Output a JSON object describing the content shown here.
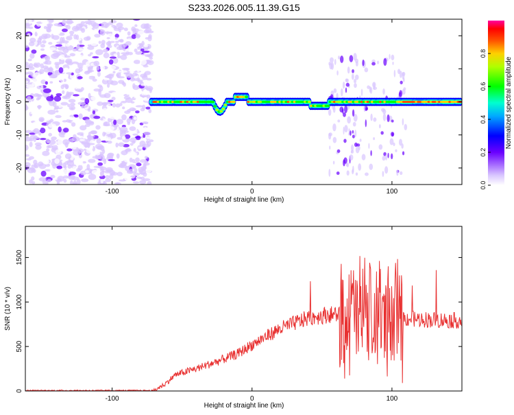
{
  "title": "S233.2026.005.11.39.G15",
  "chart_data": [
    {
      "type": "heatmap",
      "xlabel": "Height of straight line (km)",
      "ylabel": "Frequency (Hz)",
      "xlim": [
        -162,
        150
      ],
      "ylim": [
        -25,
        25
      ],
      "xticks": [
        -100,
        0,
        100
      ],
      "yticks": [
        -20,
        -10,
        0,
        10,
        20
      ],
      "colorbar": {
        "label": "Normalized spectral amplitude",
        "range": [
          0,
          1
        ],
        "ticks": [
          0.0,
          0.2,
          0.4,
          0.6,
          0.8
        ]
      },
      "description_regions": {
        "noise_region_x": [
          -162,
          -72
        ],
        "signal_line_x": [
          -72,
          150
        ],
        "signal_frequency_hz": 0
      }
    },
    {
      "type": "line",
      "xlabel": "Height of straight line (km)",
      "ylabel": "SNR (10 * v/v)",
      "xlim": [
        -162,
        150
      ],
      "ylim": [
        0,
        1850
      ],
      "xticks": [
        -100,
        0,
        100
      ],
      "yticks": [
        0,
        500,
        1000,
        1500
      ],
      "color": "#e83030",
      "series_profile": {
        "x": [
          -162,
          -70,
          -62,
          -55,
          -40,
          -25,
          -10,
          0,
          20,
          40,
          55,
          65,
          75,
          85,
          95,
          105,
          115,
          130,
          150
        ],
        "y": [
          5,
          5,
          80,
          180,
          250,
          330,
          420,
          520,
          700,
          820,
          860,
          860,
          850,
          840,
          830,
          820,
          810,
          800,
          790
        ]
      }
    }
  ]
}
